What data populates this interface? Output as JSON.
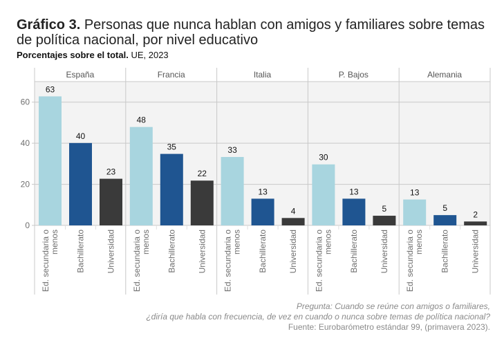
{
  "header": {
    "title_bold": "Gráfico 3.",
    "title_rest": " Personas que nunca hablan con amigos y familiares sobre temas de política nacional, por nivel educativo",
    "subtitle_bold": "Porcentajes sobre el total.",
    "subtitle_rest": " UE, 2023"
  },
  "footer": {
    "question_line1": "Pregunta: Cuando se reúne con amigos o familiares,",
    "question_line2": "¿diría que habla con frecuencia, de vez en cuando o nunca sobre temas de política nacional?",
    "source": "Fuente: Eurobarómetro estándar 99, (primavera 2023)."
  },
  "chart_data": {
    "type": "bar",
    "title": "Gráfico 3. Personas que nunca hablan con amigos y familiares sobre temas de política nacional, por nivel educativo",
    "subtitle": "Porcentajes sobre el total. UE, 2023",
    "xlabel": "",
    "ylabel": "",
    "ylim": [
      0,
      70
    ],
    "yticks": [
      0,
      20,
      40,
      60
    ],
    "grid": true,
    "facets": [
      "España",
      "Francia",
      "Italia",
      "P. Bajos",
      "Alemania"
    ],
    "categories": [
      "Ed. secundaria o menos",
      "Bachillerato",
      "Universidad"
    ],
    "category_label_lines": [
      [
        "Ed. secundaria o",
        "menos"
      ],
      [
        "Bachillerato"
      ],
      [
        "Universidad"
      ]
    ],
    "colors": [
      "#a8d5df",
      "#1f5591",
      "#3a3a3a"
    ],
    "values": [
      [
        62.8,
        40.1,
        22.7
      ],
      [
        47.9,
        34.8,
        21.8
      ],
      [
        33.3,
        13.0,
        3.6
      ],
      [
        29.7,
        13.0,
        4.7
      ],
      [
        12.6,
        5.0,
        1.9
      ]
    ],
    "labels": [
      [
        "63",
        "40",
        "23"
      ],
      [
        "48",
        "35",
        "22"
      ],
      [
        "33",
        "13",
        "4"
      ],
      [
        "30",
        "13",
        "5"
      ],
      [
        "13",
        "5",
        "2"
      ]
    ]
  }
}
